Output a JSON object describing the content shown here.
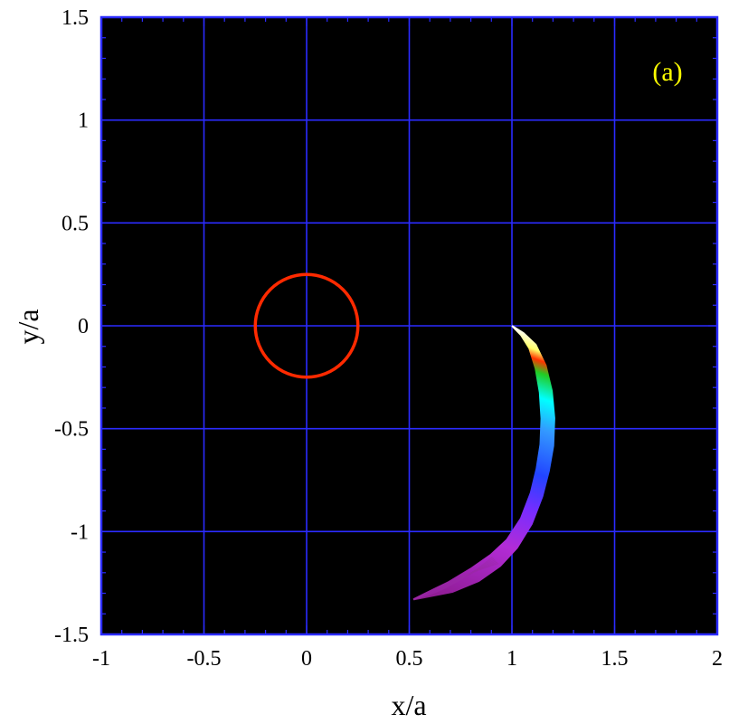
{
  "chart_data": {
    "type": "heatmap",
    "panel_label": "(a)",
    "xlabel": "x/a",
    "ylabel": "y/a",
    "xlim": [
      -1,
      2
    ],
    "ylim": [
      -1.5,
      1.5
    ],
    "x_ticks": [
      -1,
      -0.5,
      0,
      0.5,
      1,
      1.5,
      2
    ],
    "x_tick_labels": [
      "-1",
      "-0.5",
      "0",
      "0.5",
      "1",
      "1.5",
      "2"
    ],
    "y_ticks": [
      -1.5,
      -1,
      -0.5,
      0,
      0.5,
      1,
      1.5
    ],
    "y_tick_labels": [
      "-1.5",
      "-1",
      "-0.5",
      "0",
      "0.5",
      "1",
      "1.5"
    ],
    "grid": true,
    "colors": {
      "background": "#000000",
      "grid": "#2b2bff",
      "frame": "#2b2bff",
      "circle": "#ff2a00",
      "panel_label": "#ffff00"
    },
    "circle": {
      "center": [
        0,
        0
      ],
      "radius": 0.25
    },
    "stream": {
      "centerline": [
        [
          1.0,
          0.0
        ],
        [
          1.05,
          -0.04
        ],
        [
          1.1,
          -0.1
        ],
        [
          1.14,
          -0.2
        ],
        [
          1.165,
          -0.32
        ],
        [
          1.175,
          -0.45
        ],
        [
          1.17,
          -0.58
        ],
        [
          1.15,
          -0.7
        ],
        [
          1.12,
          -0.82
        ],
        [
          1.07,
          -0.95
        ],
        [
          1.0,
          -1.06
        ],
        [
          0.92,
          -1.14
        ],
        [
          0.82,
          -1.21
        ],
        [
          0.7,
          -1.27
        ],
        [
          0.52,
          -1.33
        ]
      ],
      "half_width": [
        0.004,
        0.012,
        0.022,
        0.03,
        0.034,
        0.036,
        0.036,
        0.035,
        0.034,
        0.034,
        0.036,
        0.04,
        0.04,
        0.03,
        0.005
      ],
      "color_stops": [
        {
          "t": 0.0,
          "color": "#ffffff"
        },
        {
          "t": 0.05,
          "color": "#ffff66"
        },
        {
          "t": 0.08,
          "color": "#ff3300"
        },
        {
          "t": 0.12,
          "color": "#22cc22"
        },
        {
          "t": 0.2,
          "color": "#00ffff"
        },
        {
          "t": 0.3,
          "color": "#3399ff"
        },
        {
          "t": 0.45,
          "color": "#2244ff"
        },
        {
          "t": 0.58,
          "color": "#7a2cff"
        },
        {
          "t": 0.72,
          "color": "#b22cd6"
        },
        {
          "t": 1.0,
          "color": "#8a1a8a"
        }
      ]
    }
  }
}
